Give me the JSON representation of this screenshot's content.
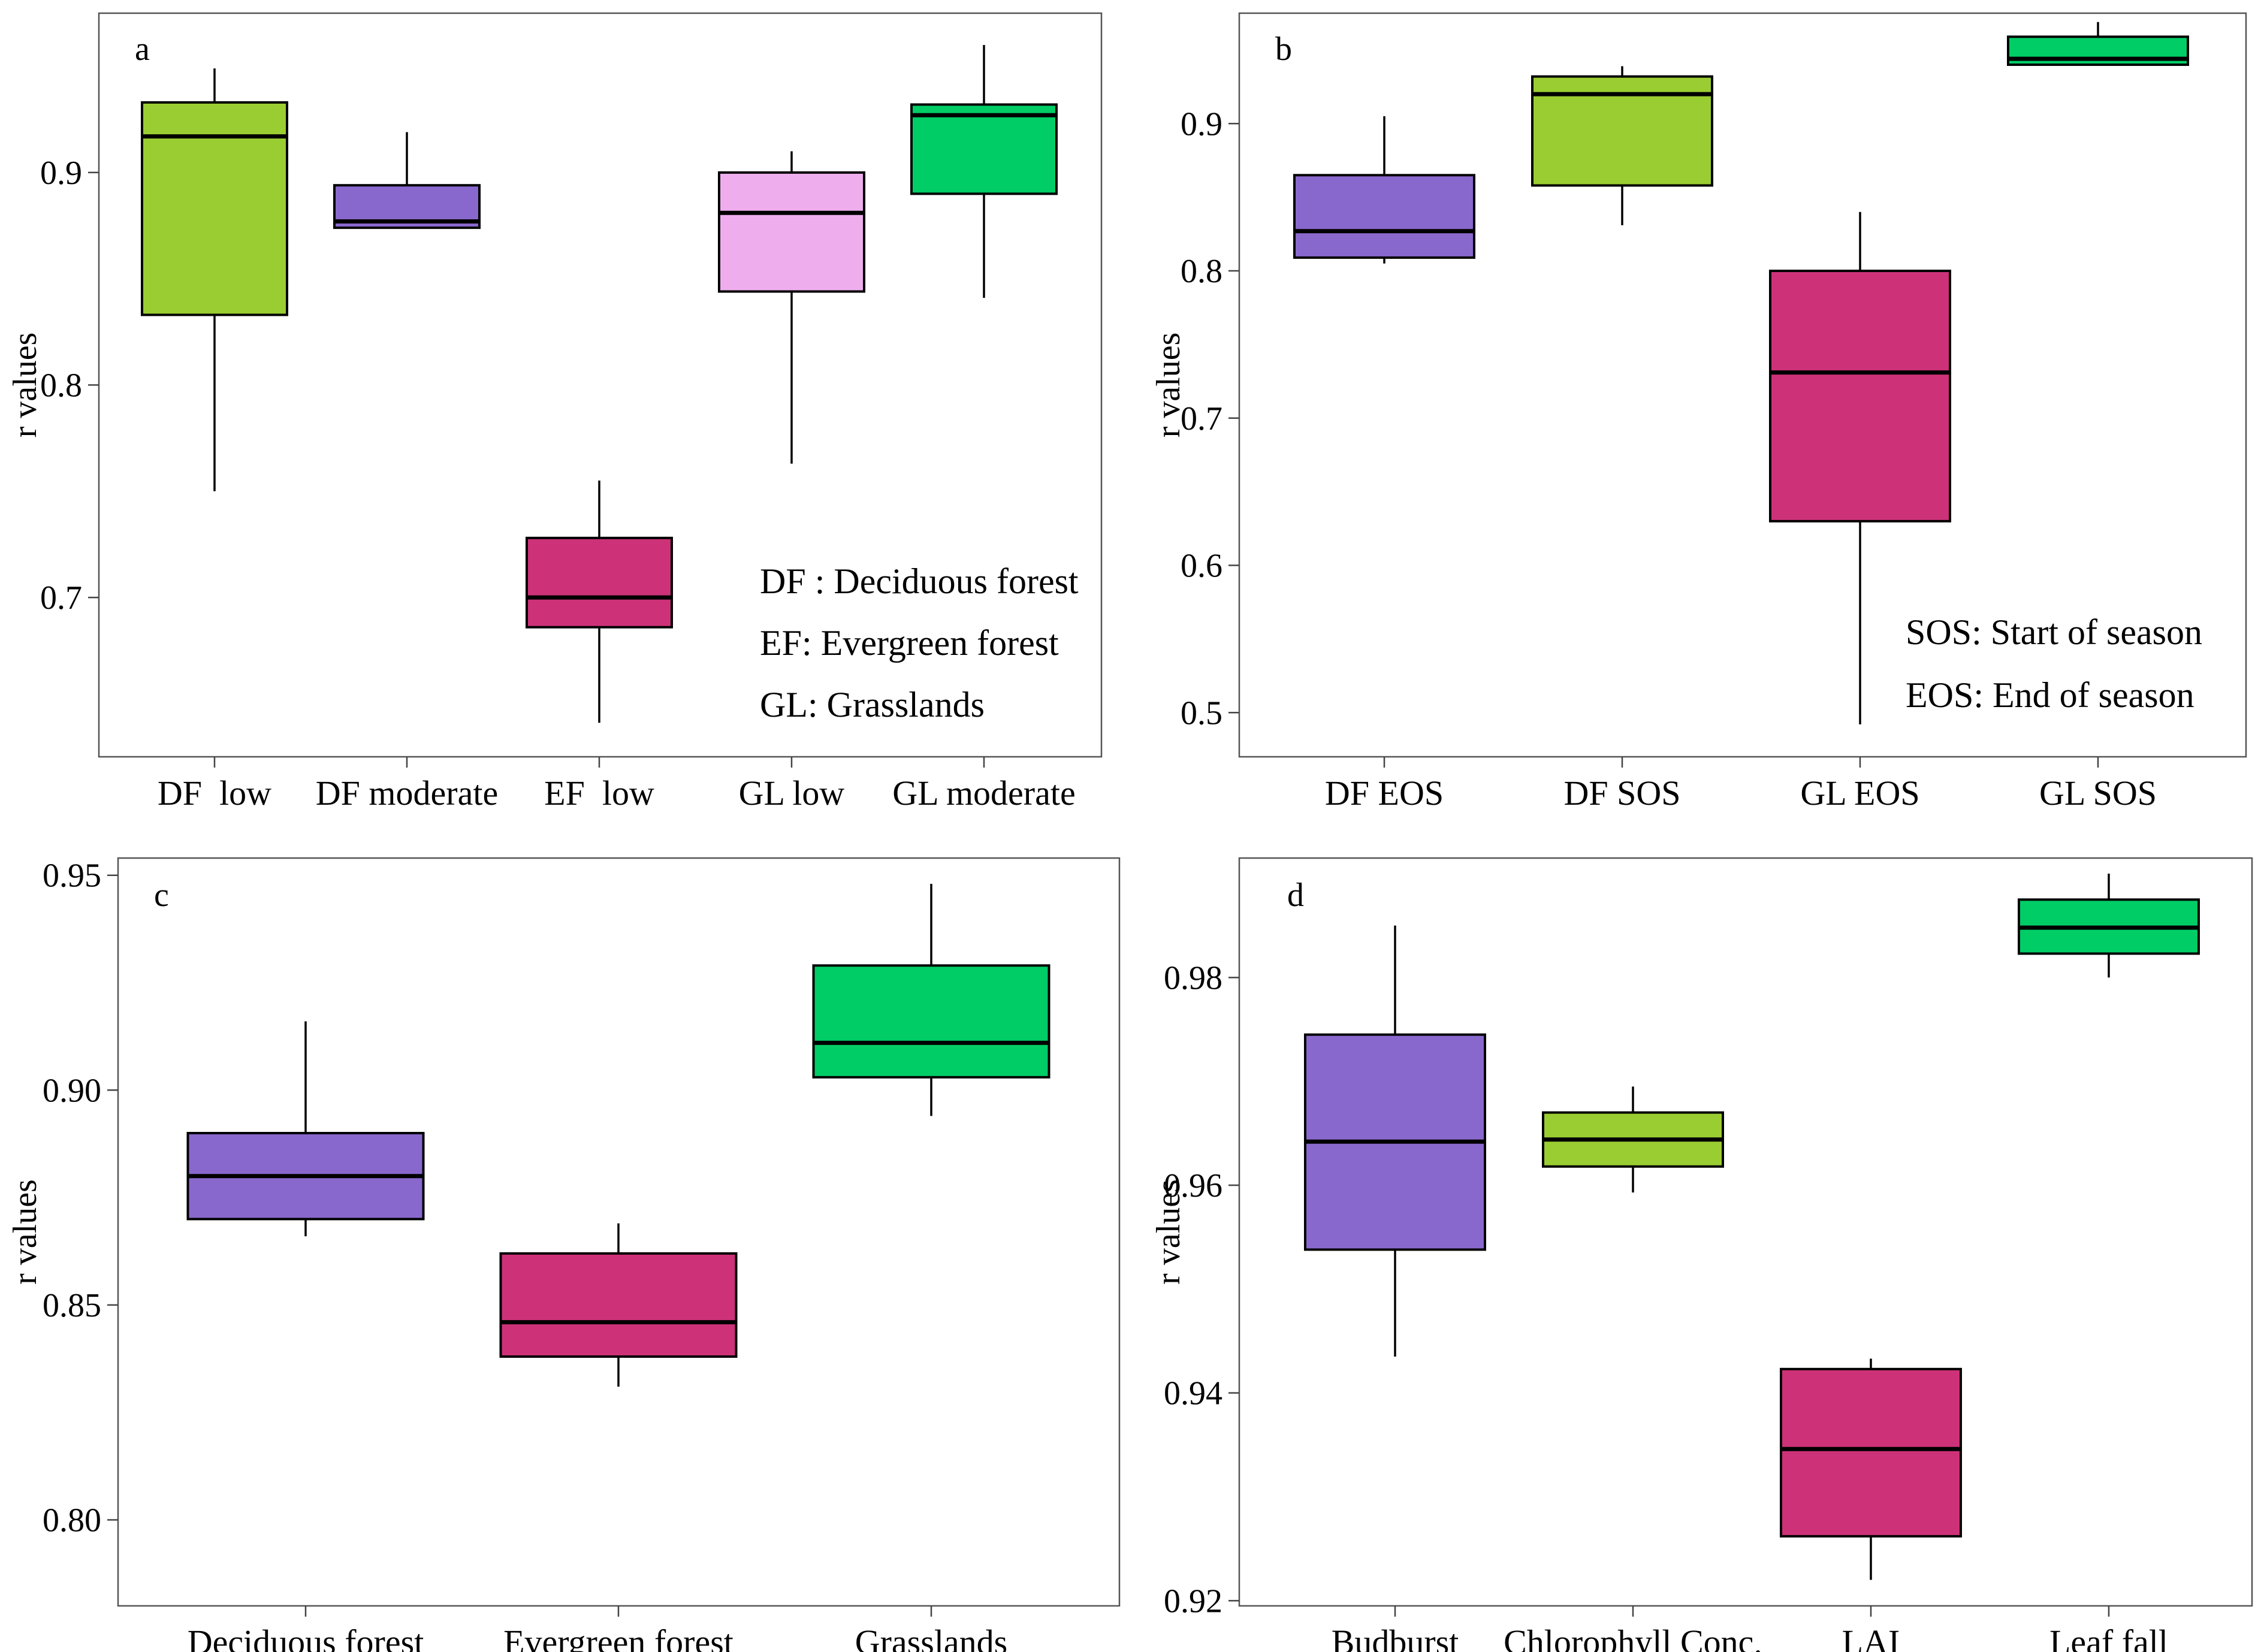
{
  "chart_data": [
    {
      "panel": "a",
      "type": "box",
      "ylabel": "r values",
      "ylim": [
        0.625,
        0.975
      ],
      "yticks": [
        0.7,
        0.8,
        0.9
      ],
      "tick_labels": [
        "0.7",
        "0.8",
        "0.9"
      ],
      "categories": [
        "DF  low",
        "DF moderate",
        "EF  low",
        "GL low",
        "GL moderate"
      ],
      "boxes": [
        {
          "min": 0.75,
          "q1": 0.833,
          "median": 0.917,
          "q3": 0.933,
          "max": 0.949,
          "color": "#9ACD32"
        },
        {
          "min": 0.874,
          "q1": 0.874,
          "median": 0.877,
          "q3": 0.894,
          "max": 0.919,
          "color": "#8968CD"
        },
        {
          "min": 0.641,
          "q1": 0.686,
          "median": 0.7,
          "q3": 0.728,
          "max": 0.755,
          "color": "#CD3278"
        },
        {
          "min": 0.763,
          "q1": 0.844,
          "median": 0.881,
          "q3": 0.9,
          "max": 0.91,
          "color": "#EEAEEE"
        },
        {
          "min": 0.841,
          "q1": 0.89,
          "median": 0.927,
          "q3": 0.932,
          "max": 0.96,
          "color": "#00CD66"
        }
      ],
      "notes": [
        "DF : Deciduous forest",
        "EF: Evergreen forest",
        "GL: Grasslands"
      ]
    },
    {
      "panel": "b",
      "type": "box",
      "ylabel": "r values",
      "ylim": [
        0.47,
        0.975
      ],
      "yticks": [
        0.5,
        0.6,
        0.7,
        0.8,
        0.9
      ],
      "tick_labels": [
        "0.5",
        "0.6",
        "0.7",
        "0.8",
        "0.9"
      ],
      "categories": [
        "DF EOS",
        "DF SOS",
        "GL EOS",
        "GL SOS"
      ],
      "boxes": [
        {
          "min": 0.805,
          "q1": 0.809,
          "median": 0.827,
          "q3": 0.865,
          "max": 0.905,
          "color": "#8968CD"
        },
        {
          "min": 0.831,
          "q1": 0.858,
          "median": 0.92,
          "q3": 0.932,
          "max": 0.939,
          "color": "#9ACD32"
        },
        {
          "min": 0.492,
          "q1": 0.63,
          "median": 0.731,
          "q3": 0.8,
          "max": 0.84,
          "color": "#CD3278"
        },
        {
          "min": 0.94,
          "q1": 0.94,
          "median": 0.944,
          "q3": 0.959,
          "max": 0.969,
          "color": "#00CD66"
        }
      ],
      "notes": [
        "SOS: Start of season",
        "EOS: End of season"
      ]
    },
    {
      "panel": "c",
      "type": "box",
      "ylabel": "r values",
      "ylim": [
        0.78,
        0.954
      ],
      "yticks": [
        0.8,
        0.85,
        0.9,
        0.95
      ],
      "tick_labels": [
        "0.80",
        "0.85",
        "0.90",
        "0.95"
      ],
      "categories": [
        "Deciduous forest",
        "Evergreen forest",
        "Grasslands"
      ],
      "boxes": [
        {
          "min": 0.866,
          "q1": 0.87,
          "median": 0.88,
          "q3": 0.89,
          "max": 0.916,
          "color": "#8968CD"
        },
        {
          "min": 0.831,
          "q1": 0.838,
          "median": 0.846,
          "q3": 0.862,
          "max": 0.869,
          "color": "#CD3278"
        },
        {
          "min": 0.894,
          "q1": 0.903,
          "median": 0.911,
          "q3": 0.929,
          "max": 0.948,
          "color": "#00CD66"
        }
      ],
      "notes": []
    },
    {
      "panel": "d",
      "type": "box",
      "ylabel": "r values",
      "ylim": [
        0.9195,
        0.9915
      ],
      "yticks": [
        0.92,
        0.94,
        0.96,
        0.98
      ],
      "tick_labels": [
        "0.92",
        "0.94",
        "0.96",
        "0.98"
      ],
      "categories": [
        "Budburst",
        "Chlorophyll Conc.",
        "LAI",
        "Leaf fall"
      ],
      "boxes": [
        {
          "min": 0.9435,
          "q1": 0.9538,
          "median": 0.9642,
          "q3": 0.9745,
          "max": 0.985,
          "color": "#8968CD"
        },
        {
          "min": 0.9593,
          "q1": 0.9618,
          "median": 0.9644,
          "q3": 0.967,
          "max": 0.9695,
          "color": "#9ACD32"
        },
        {
          "min": 0.922,
          "q1": 0.9262,
          "median": 0.9346,
          "q3": 0.9423,
          "max": 0.9433,
          "color": "#CD3278"
        },
        {
          "min": 0.98,
          "q1": 0.9823,
          "median": 0.9848,
          "q3": 0.9875,
          "max": 0.99,
          "color": "#00CD66"
        }
      ],
      "notes": []
    }
  ]
}
